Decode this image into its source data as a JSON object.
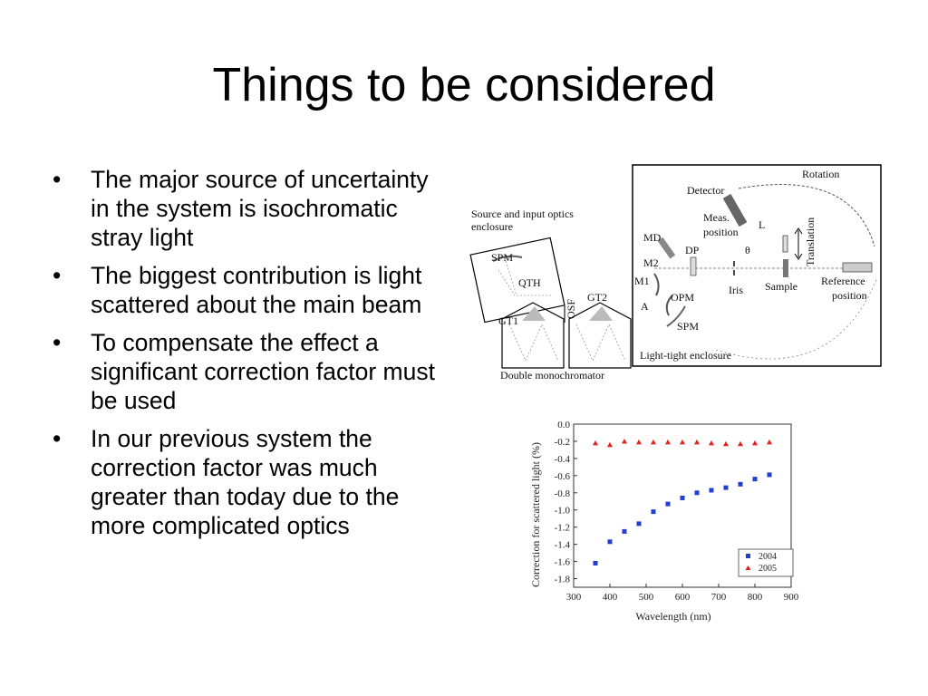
{
  "slide": {
    "title": "Things to be considered",
    "bullet_symbol": "•",
    "bullets": [
      "The major source of uncertainty in the system is isochromatic stray light",
      "The biggest contribution is light scattered about the main beam",
      "To compensate the effect a significant correction factor must be used",
      "In our previous system the correction factor was much greater than today due to the more complicated optics"
    ]
  },
  "diagram": {
    "labels": {
      "rotation": "Rotation",
      "detector": "Detector",
      "meas_position_1": "Meas.",
      "meas_position_2": "position",
      "l": "L",
      "translation": "Translation",
      "source_enclosure_1": "Source and input optics",
      "source_enclosure_2": "enclosure",
      "md": "MD",
      "dp": "DP",
      "theta": "θ",
      "spm_top": "SPM",
      "m2": "M2",
      "qth": "QTH",
      "osf": "OSF",
      "m1": "M1",
      "iris": "Iris",
      "sample": "Sample",
      "reference_1": "Reference",
      "reference_2": "position",
      "gt2": "GT2",
      "opm": "OPM",
      "a": "A",
      "gt1": "GT1",
      "spm_bottom": "SPM",
      "light_tight": "Light-tight enclosure",
      "double_mono": "Double monochromator"
    }
  },
  "chart_data": {
    "type": "scatter",
    "xlabel": "Wavelength (nm)",
    "ylabel": "Correction for scattered light (%)",
    "xlim": [
      300,
      900
    ],
    "ylim": [
      -1.9,
      0.0
    ],
    "x_ticks": [
      300,
      400,
      500,
      600,
      700,
      800,
      900
    ],
    "y_ticks": [
      0.0,
      -0.2,
      -0.4,
      -0.6,
      -0.8,
      -1.0,
      -1.2,
      -1.4,
      -1.6,
      -1.8
    ],
    "legend_position": "bottom-right",
    "series": [
      {
        "name": "2004",
        "marker": "square",
        "color": "#1f3fd1",
        "x": [
          360,
          400,
          440,
          480,
          520,
          560,
          600,
          640,
          680,
          720,
          760,
          800,
          840
        ],
        "y": [
          -1.62,
          -1.37,
          -1.25,
          -1.16,
          -1.02,
          -0.93,
          -0.86,
          -0.8,
          -0.77,
          -0.74,
          -0.7,
          -0.64,
          -0.59
        ]
      },
      {
        "name": "2005",
        "marker": "triangle",
        "color": "#e02020",
        "x": [
          360,
          400,
          440,
          480,
          520,
          560,
          600,
          640,
          680,
          720,
          760,
          800,
          840
        ],
        "y": [
          -0.22,
          -0.24,
          -0.2,
          -0.21,
          -0.21,
          -0.21,
          -0.21,
          -0.21,
          -0.22,
          -0.23,
          -0.23,
          -0.22,
          -0.21
        ]
      }
    ]
  }
}
